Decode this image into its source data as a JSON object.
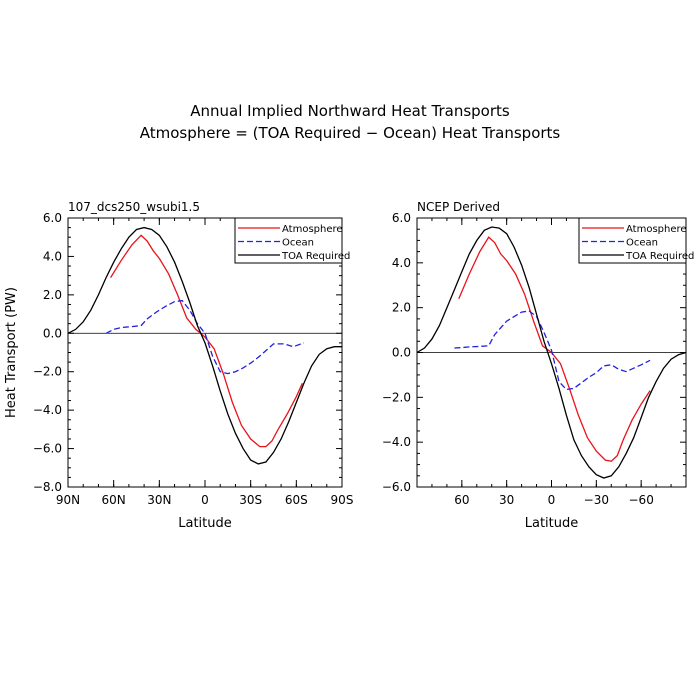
{
  "title": "Annual Implied Northward Heat Transports",
  "subtitle": "Atmosphere = (TOA Required − Ocean) Heat Transports",
  "chart_data": [
    {
      "type": "line",
      "panel_title": "107_dcs250_wsubi1.5",
      "xlabel": "Latitude",
      "ylabel": "Heat Transport (PW)",
      "xlim": [
        90,
        -90
      ],
      "ylim": [
        -8.0,
        6.0
      ],
      "xticks": [
        90,
        60,
        30,
        0,
        -30,
        -60,
        -90
      ],
      "xtick_labels": [
        "90N",
        "60N",
        "30N",
        "0",
        "30S",
        "60S",
        "90S"
      ],
      "yticks": [
        -8.0,
        -6.0,
        -4.0,
        -2.0,
        0.0,
        2.0,
        4.0,
        6.0
      ],
      "ytick_labels": [
        "−8.0",
        "−6.0",
        "−4.0",
        "−2.0",
        "0.0",
        "2.0",
        "4.0",
        "6.0"
      ],
      "legend_position": "top-right",
      "series": [
        {
          "name": "Atmosphere",
          "color": "#e8141c",
          "dash": "solid",
          "x": [
            62,
            55,
            48,
            42,
            38,
            34,
            30,
            24,
            18,
            12,
            6,
            0,
            -6,
            -12,
            -18,
            -24,
            -30,
            -36,
            -40,
            -44,
            -48,
            -54,
            -60,
            -64
          ],
          "y": [
            2.9,
            3.8,
            4.6,
            5.1,
            4.8,
            4.3,
            3.9,
            3.1,
            2.0,
            0.8,
            0.2,
            -0.2,
            -0.8,
            -2.1,
            -3.6,
            -4.8,
            -5.5,
            -5.9,
            -5.9,
            -5.6,
            -5.0,
            -4.2,
            -3.3,
            -2.6
          ]
        },
        {
          "name": "Ocean",
          "color": "#2222dd",
          "dash": "dashed",
          "x": [
            65,
            60,
            55,
            48,
            42,
            38,
            32,
            26,
            20,
            15,
            10,
            5,
            0,
            -5,
            -10,
            -15,
            -20,
            -25,
            -30,
            -35,
            -40,
            -45,
            -52,
            -58,
            -65
          ],
          "y": [
            0.0,
            0.2,
            0.3,
            0.35,
            0.4,
            0.75,
            1.1,
            1.4,
            1.65,
            1.7,
            1.2,
            0.5,
            0.0,
            -1.2,
            -2.0,
            -2.1,
            -2.0,
            -1.8,
            -1.55,
            -1.25,
            -0.9,
            -0.55,
            -0.55,
            -0.7,
            -0.5
          ]
        },
        {
          "name": "TOA Required",
          "color": "#000000",
          "dash": "solid",
          "x": [
            90,
            85,
            80,
            75,
            70,
            65,
            60,
            55,
            50,
            45,
            40,
            35,
            30,
            25,
            20,
            15,
            10,
            5,
            0,
            -5,
            -10,
            -15,
            -20,
            -25,
            -30,
            -35,
            -40,
            -45,
            -50,
            -55,
            -60,
            -65,
            -70,
            -75,
            -80,
            -85,
            -90
          ],
          "y": [
            0.0,
            0.2,
            0.6,
            1.2,
            2.0,
            2.9,
            3.7,
            4.4,
            5.0,
            5.4,
            5.5,
            5.4,
            5.1,
            4.5,
            3.7,
            2.7,
            1.6,
            0.4,
            -0.5,
            -1.7,
            -3.0,
            -4.2,
            -5.2,
            -6.0,
            -6.6,
            -6.8,
            -6.7,
            -6.2,
            -5.5,
            -4.6,
            -3.6,
            -2.6,
            -1.7,
            -1.1,
            -0.8,
            -0.7,
            -0.7
          ]
        }
      ]
    },
    {
      "type": "line",
      "panel_title": "NCEP Derived",
      "xlabel": "Latitude",
      "ylabel": "",
      "xlim": [
        90,
        -90
      ],
      "ylim": [
        -6.0,
        6.0
      ],
      "xticks": [
        60,
        30,
        0,
        -30,
        -60
      ],
      "xtick_labels": [
        "60",
        "30",
        "0",
        "−30",
        "−60"
      ],
      "yticks": [
        -6.0,
        -4.0,
        -2.0,
        0.0,
        2.0,
        4.0,
        6.0
      ],
      "ytick_labels": [
        "−6.0",
        "−4.0",
        "−2.0",
        "0.0",
        "2.0",
        "4.0",
        "6.0"
      ],
      "legend_position": "top-right",
      "series": [
        {
          "name": "Atmosphere",
          "color": "#e8141c",
          "dash": "solid",
          "x": [
            62,
            55,
            48,
            42,
            38,
            34,
            30,
            24,
            18,
            12,
            6,
            0,
            -6,
            -12,
            -18,
            -24,
            -30,
            -36,
            -40,
            -44,
            -48,
            -54,
            -60,
            -66
          ],
          "y": [
            2.4,
            3.5,
            4.5,
            5.15,
            4.9,
            4.4,
            4.1,
            3.5,
            2.6,
            1.4,
            0.3,
            0.0,
            -0.5,
            -1.6,
            -2.8,
            -3.8,
            -4.4,
            -4.8,
            -4.85,
            -4.6,
            -3.9,
            -3.0,
            -2.3,
            -1.7
          ]
        },
        {
          "name": "Ocean",
          "color": "#2222dd",
          "dash": "dashed",
          "x": [
            65,
            60,
            55,
            48,
            42,
            38,
            34,
            30,
            25,
            20,
            15,
            10,
            5,
            0,
            -5,
            -10,
            -15,
            -20,
            -25,
            -30,
            -35,
            -40,
            -45,
            -50,
            -55,
            -60,
            -66
          ],
          "y": [
            0.2,
            0.22,
            0.25,
            0.27,
            0.3,
            0.8,
            1.1,
            1.4,
            1.6,
            1.8,
            1.85,
            1.6,
            0.9,
            0.1,
            -1.3,
            -1.65,
            -1.6,
            -1.35,
            -1.1,
            -0.9,
            -0.6,
            -0.55,
            -0.75,
            -0.85,
            -0.7,
            -0.55,
            -0.35
          ]
        },
        {
          "name": "TOA Required",
          "color": "#000000",
          "dash": "solid",
          "x": [
            90,
            85,
            80,
            75,
            70,
            65,
            60,
            55,
            50,
            45,
            40,
            35,
            30,
            25,
            20,
            15,
            10,
            5,
            0,
            -5,
            -10,
            -15,
            -20,
            -25,
            -30,
            -35,
            -40,
            -45,
            -50,
            -55,
            -60,
            -65,
            -70,
            -75,
            -80,
            -85,
            -90
          ],
          "y": [
            0.0,
            0.2,
            0.6,
            1.2,
            2.0,
            2.8,
            3.6,
            4.4,
            5.0,
            5.45,
            5.6,
            5.55,
            5.3,
            4.7,
            3.9,
            2.9,
            1.7,
            0.5,
            -0.5,
            -1.6,
            -2.8,
            -3.9,
            -4.6,
            -5.1,
            -5.45,
            -5.6,
            -5.5,
            -5.1,
            -4.5,
            -3.8,
            -2.9,
            -2.0,
            -1.3,
            -0.7,
            -0.3,
            -0.1,
            0.0
          ]
        }
      ]
    }
  ]
}
